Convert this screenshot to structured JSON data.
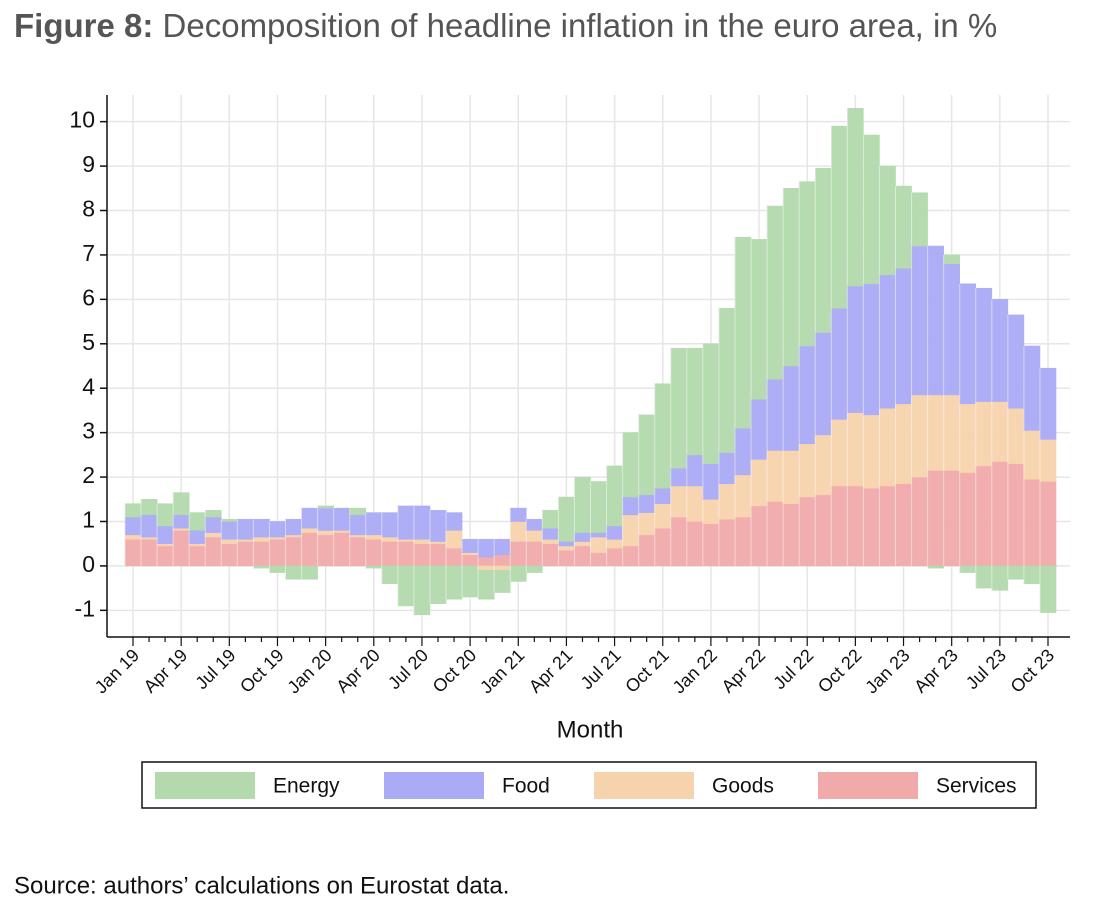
{
  "chart_data": {
    "type": "stacked_bar",
    "title_label": "Figure 8:",
    "title": "Decomposition of headline inflation in the euro area, in %",
    "xlabel": "Month",
    "source": "Source: authors’ calculations on Eurostat data.",
    "categories": [
      "Jan 19",
      null,
      null,
      "Apr 19",
      null,
      null,
      "Jul 19",
      null,
      null,
      "Oct 19",
      null,
      null,
      "Jan 20",
      null,
      null,
      "Apr 20",
      null,
      null,
      "Jul 20",
      null,
      null,
      "Oct 20",
      null,
      null,
      "Jan 21",
      null,
      null,
      "Apr 21",
      null,
      null,
      "Jul 21",
      null,
      null,
      "Oct 21",
      null,
      null,
      "Jan 22",
      null,
      null,
      "Apr 22",
      null,
      null,
      "Jul 22",
      null,
      null,
      "Oct 22",
      null,
      null,
      "Jan 23",
      null,
      null,
      "Apr 23",
      null,
      null,
      "Jul 23",
      null,
      null,
      "Oct 23"
    ],
    "series": [
      {
        "name": "Energy",
        "color": "#b3d9ad",
        "values": [
          0.3,
          0.35,
          0.5,
          0.5,
          0.4,
          0.15,
          0.05,
          0,
          -0.05,
          -0.15,
          -0.3,
          -0.3,
          0.05,
          0,
          0.15,
          -0.05,
          -0.4,
          -0.9,
          -1.1,
          -0.85,
          -0.75,
          -0.7,
          -0.65,
          -0.5,
          -0.35,
          -0.15,
          0.4,
          1.0,
          1.25,
          1.15,
          1.35,
          1.45,
          1.8,
          2.35,
          2.7,
          2.4,
          2.7,
          3.25,
          4.3,
          3.6,
          3.9,
          4.0,
          3.7,
          3.7,
          4.1,
          4.0,
          3.35,
          2.45,
          1.85,
          1.2,
          -0.05,
          0.2,
          -0.15,
          -0.5,
          -0.55,
          -0.3,
          -0.4,
          -1.05
        ]
      },
      {
        "name": "Food",
        "color": "#aaaaf5",
        "values": [
          0.4,
          0.5,
          0.4,
          0.3,
          0.3,
          0.35,
          0.4,
          0.45,
          0.4,
          0.35,
          0.35,
          0.45,
          0.5,
          0.5,
          0.45,
          0.5,
          0.55,
          0.75,
          0.75,
          0.7,
          0.4,
          0.3,
          0.4,
          0.35,
          0.3,
          0.25,
          0.25,
          0.1,
          0.2,
          0.1,
          0.3,
          0.4,
          0.4,
          0.35,
          0.4,
          0.7,
          0.8,
          0.7,
          1.05,
          1.35,
          1.6,
          1.9,
          2.2,
          2.3,
          2.5,
          2.85,
          2.95,
          3.0,
          3.05,
          3.35,
          3.35,
          2.95,
          2.7,
          2.55,
          2.3,
          2.1,
          1.9,
          1.6
        ]
      },
      {
        "name": "Goods",
        "color": "#f7d3ad",
        "values": [
          0.1,
          0.05,
          0.05,
          0.05,
          0.05,
          0.1,
          0.1,
          0.05,
          0.1,
          0.05,
          0.05,
          0.1,
          0.1,
          0.05,
          0.05,
          0.1,
          0.1,
          0.05,
          0.1,
          0.05,
          0.4,
          0.05,
          -0.1,
          -0.1,
          0.45,
          0.25,
          0.1,
          0.1,
          0.1,
          0.35,
          0.2,
          0.7,
          0.5,
          0.55,
          0.7,
          0.8,
          0.55,
          0.8,
          0.95,
          1.05,
          1.15,
          1.2,
          1.2,
          1.35,
          1.5,
          1.65,
          1.65,
          1.75,
          1.8,
          1.85,
          1.7,
          1.7,
          1.55,
          1.45,
          1.35,
          1.25,
          1.1,
          0.95
        ]
      },
      {
        "name": "Services",
        "color": "#f1aaaa",
        "values": [
          0.6,
          0.6,
          0.45,
          0.8,
          0.45,
          0.65,
          0.5,
          0.55,
          0.55,
          0.6,
          0.65,
          0.75,
          0.7,
          0.75,
          0.65,
          0.6,
          0.55,
          0.55,
          0.5,
          0.5,
          0.4,
          0.25,
          0.2,
          0.25,
          0.55,
          0.55,
          0.5,
          0.35,
          0.45,
          0.3,
          0.4,
          0.45,
          0.7,
          0.85,
          1.1,
          1.0,
          0.95,
          1.05,
          1.1,
          1.35,
          1.45,
          1.4,
          1.55,
          1.6,
          1.8,
          1.8,
          1.75,
          1.8,
          1.85,
          2.0,
          2.15,
          2.15,
          2.1,
          2.25,
          2.35,
          2.3,
          1.95,
          1.9
        ]
      }
    ],
    "ylim": [
      -1.6,
      10.6
    ],
    "yticks": [
      -1,
      0,
      1,
      2,
      3,
      4,
      5,
      6,
      7,
      8,
      9,
      10
    ],
    "grid": true,
    "legend": "bottom"
  }
}
